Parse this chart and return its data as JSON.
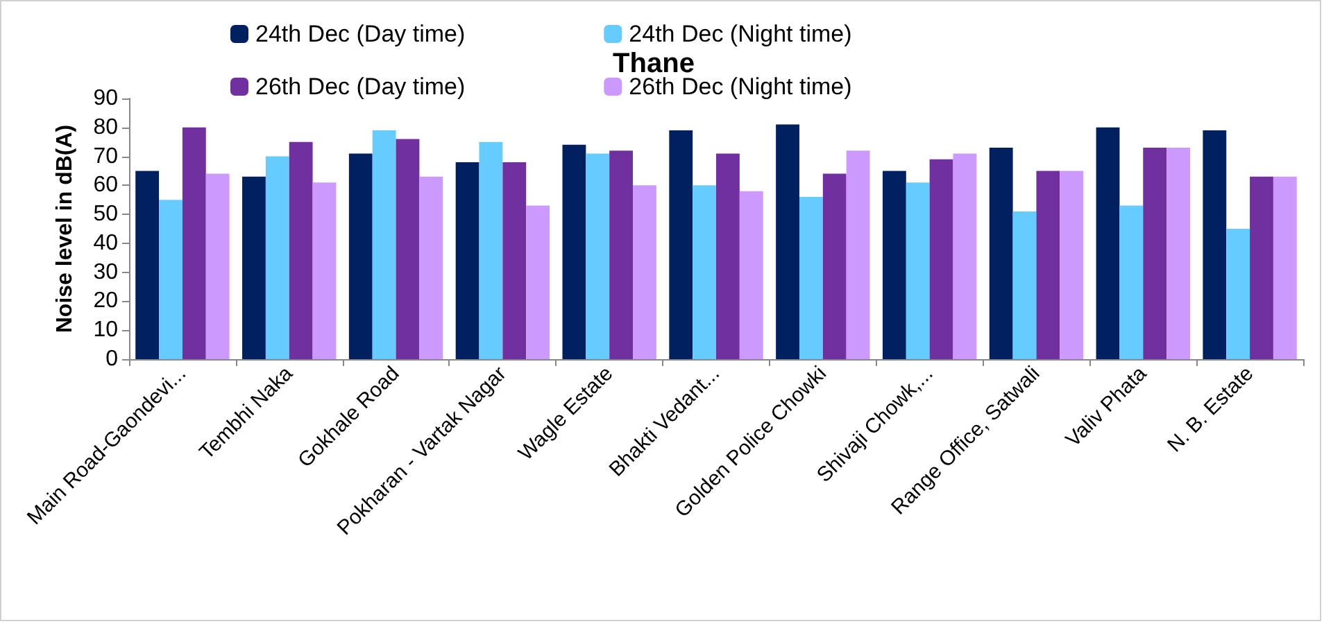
{
  "chart_data": {
    "type": "bar",
    "title": "Thane",
    "ylabel": "Noise level in dB(A)",
    "categories": [
      "Main Road-Gaondevi...",
      "Tembhi Naka",
      "Gokhale Road",
      "Pokharan - Vartak Nagar",
      "Wagle Estate",
      "Bhakti Vedant...",
      "Golden Police Chowki",
      "Shivaji Chowk,...",
      "Range Office, Satwali",
      "Valiv Phata",
      "N. B. Estate"
    ],
    "series": [
      {
        "name": "24th Dec (Day time)",
        "color": "#002060",
        "values": [
          65,
          63,
          71,
          68,
          74,
          79,
          81,
          65,
          73,
          80,
          79
        ]
      },
      {
        "name": "24th Dec (Night time)",
        "color": "#66ccff",
        "values": [
          55,
          70,
          79,
          75,
          71,
          60,
          56,
          61,
          51,
          53,
          45
        ]
      },
      {
        "name": "26th Dec (Day time)",
        "color": "#7030a0",
        "values": [
          80,
          75,
          76,
          68,
          72,
          71,
          64,
          69,
          65,
          73,
          63
        ]
      },
      {
        "name": "26th Dec (Night time)",
        "color": "#cc99ff",
        "values": [
          64,
          61,
          63,
          53,
          60,
          58,
          72,
          71,
          65,
          73,
          63
        ]
      }
    ],
    "ylim": [
      0,
      90
    ],
    "yticks": [
      0,
      10,
      20,
      30,
      40,
      50,
      60,
      70,
      80,
      90
    ],
    "grid": false,
    "legend": "top"
  }
}
